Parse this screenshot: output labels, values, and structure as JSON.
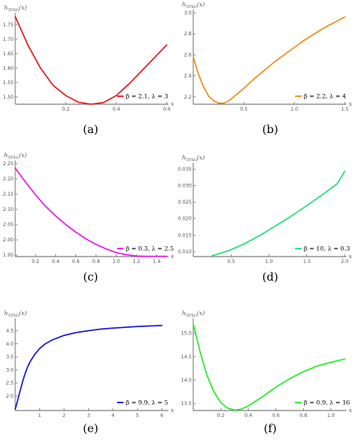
{
  "chart_data": [
    {
      "type": "line",
      "panel": "(a)",
      "ylabel": "h_{TPXG}(x)",
      "xlabel": "x",
      "xlim": [
        0,
        0.6
      ],
      "ylim": [
        1.475,
        1.78
      ],
      "xticks": [
        "0.2",
        "0.4",
        "0.6"
      ],
      "xtickvals": [
        0.2,
        0.4,
        0.6
      ],
      "yticks": [
        "1.50",
        "1.55",
        "1.60",
        "1.65",
        "1.70",
        "1.75"
      ],
      "ytickvals": [
        1.5,
        1.55,
        1.6,
        1.65,
        1.7,
        1.75
      ],
      "color": "#e8141a",
      "legend": "β = 2.1, λ = 3",
      "legend_position": "right-lower",
      "series": [
        {
          "name": "β = 2.1, λ = 3",
          "x": [
            0,
            0.05,
            0.1,
            0.15,
            0.2,
            0.25,
            0.3,
            0.35,
            0.4,
            0.45,
            0.5,
            0.55,
            0.6
          ],
          "y": [
            1.778,
            1.68,
            1.6,
            1.54,
            1.505,
            1.482,
            1.475,
            1.481,
            1.505,
            1.545,
            1.59,
            1.635,
            1.68
          ]
        }
      ]
    },
    {
      "type": "line",
      "panel": "(b)",
      "ylabel": "h_{TPXG}(x)",
      "xlabel": "x",
      "xlim": [
        0,
        1.5
      ],
      "ylim": [
        2.13,
        3.0
      ],
      "xticks": [
        "0.5",
        "1.0",
        "1.5"
      ],
      "xtickvals": [
        0.5,
        1.0,
        1.5
      ],
      "yticks": [
        "2.2",
        "2.4",
        "2.6",
        "2.8",
        "3.0"
      ],
      "ytickvals": [
        2.2,
        2.4,
        2.6,
        2.8,
        3.0
      ],
      "color": "#f08c12",
      "legend": "β = 2.2, λ = 4",
      "legend_position": "right-lower",
      "series": [
        {
          "name": "β = 2.2, λ = 4",
          "x": [
            0,
            0.05,
            0.1,
            0.15,
            0.2,
            0.25,
            0.3,
            0.35,
            0.4,
            0.5,
            0.6,
            0.7,
            0.8,
            0.9,
            1.0,
            1.1,
            1.2,
            1.3,
            1.4,
            1.5
          ],
          "y": [
            2.58,
            2.42,
            2.3,
            2.21,
            2.165,
            2.14,
            2.14,
            2.16,
            2.2,
            2.28,
            2.37,
            2.45,
            2.53,
            2.6,
            2.67,
            2.74,
            2.8,
            2.86,
            2.91,
            2.96
          ]
        }
      ]
    },
    {
      "type": "line",
      "panel": "(c)",
      "ylabel": "h_{TPXG}(x)",
      "xlabel": "x",
      "xlim": [
        0,
        1.5
      ],
      "ylim": [
        1.945,
        2.25
      ],
      "xticks": [
        "0.2",
        "0.4",
        "0.6",
        "0.8",
        "1.0",
        "1.2",
        "1.4"
      ],
      "xtickvals": [
        0.2,
        0.4,
        0.6,
        0.8,
        1.0,
        1.2,
        1.4
      ],
      "yticks": [
        "1.95",
        "2.00",
        "2.05",
        "2.10",
        "2.15",
        "2.20",
        "2.25"
      ],
      "ytickvals": [
        1.95,
        2.0,
        2.05,
        2.1,
        2.15,
        2.2,
        2.25
      ],
      "color": "#ee12ee",
      "legend": "β = 0.3, λ = 2.5",
      "legend_position": "right-lower",
      "series": [
        {
          "name": "β = 0.3, λ = 2.5",
          "x": [
            0,
            0.1,
            0.2,
            0.3,
            0.4,
            0.5,
            0.6,
            0.7,
            0.8,
            0.9,
            1.0,
            1.1,
            1.2,
            1.3,
            1.4,
            1.5
          ],
          "y": [
            2.235,
            2.19,
            2.148,
            2.11,
            2.078,
            2.05,
            2.025,
            2.003,
            1.985,
            1.97,
            1.958,
            1.951,
            1.947,
            1.946,
            1.946,
            1.946
          ]
        }
      ]
    },
    {
      "type": "line",
      "panel": "(d)",
      "ylabel": "h_{TPXG}(x)",
      "xlabel": "x",
      "xlim": [
        0,
        2.0
      ],
      "ylim": [
        0.0085,
        0.036
      ],
      "xticks": [
        "0.5",
        "1.0",
        "1.5",
        "2.0"
      ],
      "xtickvals": [
        0.5,
        1.0,
        1.5,
        2.0
      ],
      "yticks": [
        "0.010",
        "0.015",
        "0.020",
        "0.025",
        "0.030",
        "0.035"
      ],
      "ytickvals": [
        0.01,
        0.015,
        0.02,
        0.025,
        0.03,
        0.035
      ],
      "color": "#22dd77",
      "legend": "β = 10, λ = 0.3",
      "legend_position": "right-lower",
      "series": [
        {
          "name": "β = 10, λ = 0.3",
          "x": [
            0.25,
            0.3,
            0.4,
            0.5,
            0.6,
            0.7,
            0.8,
            0.9,
            1.0,
            1.1,
            1.2,
            1.3,
            1.4,
            1.5,
            1.6,
            1.7,
            1.8,
            1.9,
            2.0
          ],
          "y": [
            0.0088,
            0.0091,
            0.0098,
            0.0106,
            0.0116,
            0.0127,
            0.0139,
            0.0152,
            0.0166,
            0.018,
            0.0194,
            0.0209,
            0.0224,
            0.024,
            0.0256,
            0.0272,
            0.0289,
            0.0306,
            0.0344
          ]
        }
      ]
    },
    {
      "type": "line",
      "panel": "(e)",
      "ylabel": "h_{TPXG}(x)",
      "xlabel": "x",
      "xlim": [
        0,
        6.2
      ],
      "ylim": [
        1.45,
        4.85
      ],
      "xticks": [
        "1",
        "2",
        "3",
        "4",
        "5",
        "6"
      ],
      "xtickvals": [
        1,
        2,
        3,
        4,
        5,
        6
      ],
      "yticks": [
        "2.0",
        "2.5",
        "3.0",
        "3.5",
        "4.0",
        "4.5"
      ],
      "ytickvals": [
        2.0,
        2.5,
        3.0,
        3.5,
        4.0,
        4.5
      ],
      "color": "#1414dd",
      "legend": "β = 9.9, λ = 5",
      "legend_position": "right-lower",
      "series": [
        {
          "name": "β = 9.9, λ = 5",
          "x": [
            0,
            0.1,
            0.2,
            0.3,
            0.4,
            0.5,
            0.6,
            0.8,
            1.0,
            1.2,
            1.5,
            2.0,
            2.5,
            3.0,
            3.5,
            4.0,
            4.5,
            5.0,
            5.5,
            6.0
          ],
          "y": [
            1.5,
            1.85,
            2.2,
            2.55,
            2.85,
            3.1,
            3.3,
            3.6,
            3.82,
            3.98,
            4.14,
            4.32,
            4.43,
            4.5,
            4.56,
            4.6,
            4.63,
            4.66,
            4.68,
            4.7
          ]
        }
      ]
    },
    {
      "type": "line",
      "panel": "(f)",
      "ylabel": "h_{TPXG}(x)",
      "xlabel": "x",
      "xlim": [
        0,
        1.1
      ],
      "ylim": [
        13.35,
        15.25
      ],
      "xticks": [
        "0.2",
        "0.4",
        "0.6",
        "0.8",
        "1.0"
      ],
      "xtickvals": [
        0.2,
        0.4,
        0.6,
        0.8,
        1.0
      ],
      "yticks": [
        "13.5",
        "14.0",
        "14.5",
        "15.0"
      ],
      "ytickvals": [
        13.5,
        14.0,
        14.5,
        15.0
      ],
      "color": "#22ee22",
      "legend": "β = 0.9, λ = 16",
      "legend_position": "right-lower",
      "series": [
        {
          "name": "β = 0.9, λ = 16",
          "x": [
            0,
            0.05,
            0.1,
            0.15,
            0.2,
            0.25,
            0.3,
            0.35,
            0.4,
            0.5,
            0.6,
            0.7,
            0.8,
            0.9,
            1.0,
            1.1
          ],
          "y": [
            15.2,
            14.6,
            14.1,
            13.75,
            13.52,
            13.4,
            13.36,
            13.38,
            13.45,
            13.64,
            13.85,
            14.03,
            14.18,
            14.3,
            14.38,
            14.45
          ]
        }
      ]
    }
  ]
}
